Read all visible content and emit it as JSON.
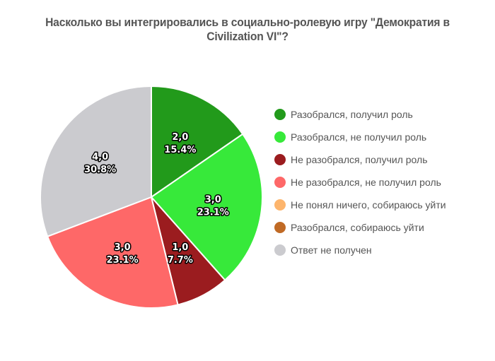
{
  "chart_data": {
    "type": "pie",
    "title": "Насколько вы интегрировались в социально-ролевую игру \"Демократия в Civilization VI\"?",
    "legend_position": "right",
    "slices": [
      {
        "name": "Разобрался, получил роль",
        "value": 2,
        "value_label": "2,0",
        "percent_label": "15.4%",
        "color": "#229a1b"
      },
      {
        "name": "Разобрался, не получил роль",
        "value": 3,
        "value_label": "3,0",
        "percent_label": "23.1%",
        "color": "#37e93a"
      },
      {
        "name": "Не разобрался, получил роль",
        "value": 1,
        "value_label": "1,0",
        "percent_label": "7.7%",
        "color": "#9b1c1f"
      },
      {
        "name": "Не разобрался, не получил роль",
        "value": 3,
        "value_label": "3,0",
        "percent_label": "23.1%",
        "color": "#fe6868"
      },
      {
        "name": "Не понял ничего, собираюсь уйти",
        "value": 0,
        "value_label": "",
        "percent_label": "",
        "color": "#fdb56d"
      },
      {
        "name": "Разобрался, собираюсь уйти",
        "value": 0,
        "value_label": "",
        "percent_label": "",
        "color": "#c06a25"
      },
      {
        "name": "Ответ не получен",
        "value": 4,
        "value_label": "4,0",
        "percent_label": "30.8%",
        "color": "#cbcbcf"
      }
    ]
  }
}
